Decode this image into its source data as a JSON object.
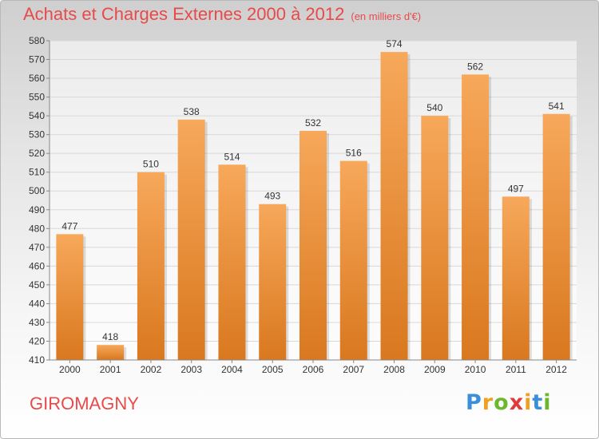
{
  "chart_data": {
    "type": "bar",
    "title": "Achats et Charges Externes 2000 à 2012",
    "unit_label": "(en milliers d'€)",
    "categories": [
      "2000",
      "2001",
      "2002",
      "2003",
      "2004",
      "2005",
      "2006",
      "2007",
      "2008",
      "2009",
      "2010",
      "2011",
      "2012"
    ],
    "values": [
      477,
      418,
      510,
      538,
      514,
      493,
      532,
      516,
      574,
      540,
      562,
      497,
      541
    ],
    "ylim": [
      410,
      580
    ],
    "ytick_step": 10,
    "grid": true,
    "bar_color": "#f0963c",
    "bar_color_dark": "#d9781f",
    "xlabel": "",
    "ylabel": ""
  },
  "footer": {
    "location": "GIROMAGNY"
  },
  "logo": {
    "letters": [
      "P",
      "r",
      "o",
      "x",
      "i",
      "t",
      "i"
    ],
    "colors": [
      "#3a8fd8",
      "#f0a020",
      "#6ab82c",
      "#e03a3a",
      "#f0a020",
      "#3a8fd8",
      "#6ab82c"
    ]
  },
  "colors": {
    "title": "#e84a4a",
    "grid": "#d8d8d8"
  }
}
